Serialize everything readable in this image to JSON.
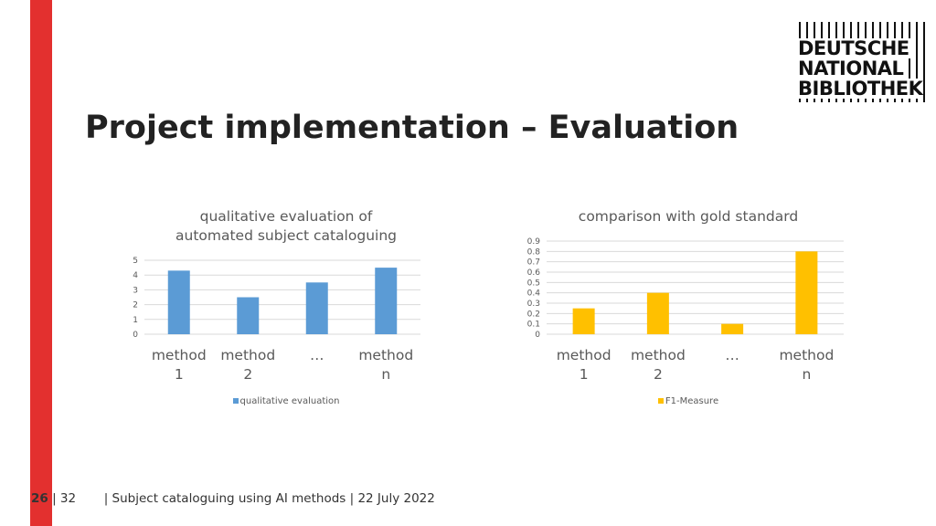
{
  "slide": {
    "title": "Project implementation – Evaluation",
    "logo": {
      "line1": "DEUTSCHE",
      "line2": "NATIONAL",
      "line3": "BIBLIOTHEK"
    },
    "footer": {
      "page": "26",
      "total": "| 32",
      "text": "| Subject cataloguing using AI methods | 22 July 2022"
    }
  },
  "colors": {
    "accent_red": "#e3302f",
    "series_blue": "#5b9bd5",
    "series_gold": "#ffc000"
  },
  "chart_data": [
    {
      "type": "bar",
      "title_lines": [
        "qualitative evaluation of",
        "automated subject cataloguing"
      ],
      "categories": [
        [
          "method",
          "1"
        ],
        [
          "method",
          "2"
        ],
        [
          "…",
          ""
        ],
        [
          "method",
          "n"
        ]
      ],
      "series": [
        {
          "name": "qualitative evaluation",
          "values": [
            4.3,
            2.5,
            3.5,
            4.5
          ]
        }
      ],
      "ylim": [
        0,
        5
      ],
      "yticks": [
        "0",
        "1",
        "2",
        "3",
        "4",
        "5"
      ],
      "grid": true,
      "legend": "bottom"
    },
    {
      "type": "bar",
      "title_lines": [
        "comparison with gold standard"
      ],
      "categories": [
        [
          "method",
          "1"
        ],
        [
          "method",
          "2"
        ],
        [
          "…",
          ""
        ],
        [
          "method",
          "n"
        ]
      ],
      "series": [
        {
          "name": "F1-Measure",
          "values": [
            0.25,
            0.4,
            0.1,
            0.8
          ]
        }
      ],
      "ylim": [
        0,
        0.9
      ],
      "yticks": [
        "0",
        "0.1",
        "0.2",
        "0.3",
        "0.4",
        "0.5",
        "0.6",
        "0.7",
        "0.8",
        "0.9"
      ],
      "grid": true,
      "legend": "bottom"
    }
  ]
}
